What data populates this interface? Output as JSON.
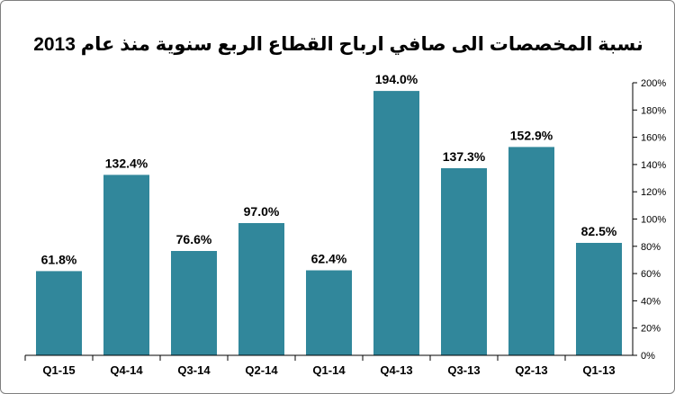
{
  "chart_data": {
    "type": "bar",
    "title": "نسبة المخصصات الى صافي ارباح القطاع الربع سنوية منذ عام 2013",
    "categories": [
      "Q1-15",
      "Q4-14",
      "Q3-14",
      "Q2-14",
      "Q1-14",
      "Q4-13",
      "Q3-13",
      "Q2-13",
      "Q1-13"
    ],
    "values": [
      61.8,
      132.4,
      76.6,
      97.0,
      62.4,
      194.0,
      137.3,
      152.9,
      82.5
    ],
    "data_labels": [
      "61.8%",
      "132.4%",
      "76.6%",
      "97.0%",
      "62.4%",
      "194.0%",
      "137.3%",
      "152.9%",
      "82.5%"
    ],
    "ylim": [
      0,
      200
    ],
    "y_ticks": [
      "0%",
      "20%",
      "40%",
      "60%",
      "80%",
      "100%",
      "120%",
      "140%",
      "160%",
      "180%",
      "200%"
    ],
    "y_axis_position": "right",
    "grid": false,
    "bar_color": "#31879b"
  }
}
